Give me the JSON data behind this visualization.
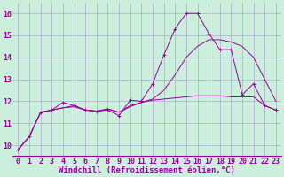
{
  "background_color": "#cceedd",
  "grid_color": "#aaaacc",
  "line_color": "#990099",
  "xlabel": "Windchill (Refroidissement éolien,°C)",
  "xlim": [
    -0.5,
    23.5
  ],
  "ylim": [
    9.5,
    16.5
  ],
  "yticks": [
    10,
    11,
    12,
    13,
    14,
    15,
    16
  ],
  "xticks": [
    0,
    1,
    2,
    3,
    4,
    5,
    6,
    7,
    8,
    9,
    10,
    11,
    12,
    13,
    14,
    15,
    16,
    17,
    18,
    19,
    20,
    21,
    22,
    23
  ],
  "series1_x": [
    0,
    1,
    2,
    3,
    4,
    5,
    6,
    7,
    8,
    9,
    10,
    11,
    12,
    13,
    14,
    15,
    16,
    17,
    18,
    19,
    20,
    21,
    22,
    23
  ],
  "series1_y": [
    9.8,
    10.4,
    11.5,
    11.6,
    11.95,
    11.8,
    11.6,
    11.55,
    11.6,
    11.35,
    12.05,
    12.0,
    12.8,
    14.1,
    15.3,
    16.0,
    16.0,
    15.1,
    14.35,
    14.35,
    12.3,
    12.8,
    11.8,
    11.6
  ],
  "series2_x": [
    0,
    1,
    2,
    3,
    4,
    5,
    6,
    7,
    8,
    9,
    10,
    11,
    12,
    13,
    14,
    15,
    16,
    17,
    18,
    19,
    20,
    21,
    22,
    23
  ],
  "series2_y": [
    9.8,
    10.4,
    11.5,
    11.6,
    11.7,
    11.8,
    11.6,
    11.55,
    11.65,
    11.5,
    11.8,
    11.95,
    12.05,
    12.1,
    12.15,
    12.2,
    12.25,
    12.25,
    12.25,
    12.2,
    12.2,
    12.2,
    11.8,
    11.6
  ],
  "series3_x": [
    0,
    1,
    2,
    3,
    4,
    5,
    6,
    7,
    8,
    9,
    10,
    11,
    12,
    13,
    14,
    15,
    16,
    17,
    18,
    19,
    20,
    21,
    22,
    23
  ],
  "series3_y": [
    9.8,
    10.4,
    11.5,
    11.6,
    11.7,
    11.75,
    11.6,
    11.55,
    11.65,
    11.5,
    11.75,
    11.95,
    12.1,
    12.5,
    13.2,
    14.0,
    14.5,
    14.8,
    14.8,
    14.7,
    14.5,
    14.0,
    13.0,
    12.0
  ],
  "xlabel_fontsize": 6.5,
  "tick_fontsize": 6.0
}
